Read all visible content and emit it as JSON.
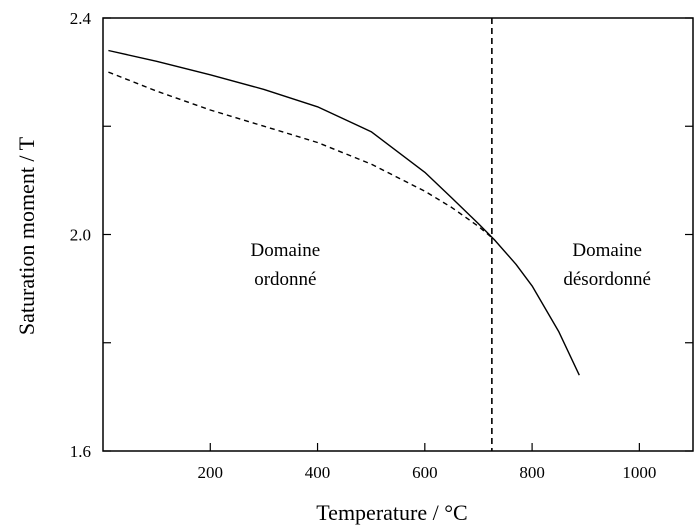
{
  "chart_data": {
    "type": "line",
    "title": "",
    "xlabel": "Temperature / °C",
    "ylabel": "Saturation moment / T",
    "xlim": [
      0,
      1100
    ],
    "ylim": [
      1.6,
      2.4
    ],
    "x_ticks": [
      200,
      400,
      600,
      800,
      1000
    ],
    "x_tick_labels": [
      "200",
      "400",
      "600",
      "800",
      "1000"
    ],
    "y_ticks": [
      1.6,
      2.0,
      2.4
    ],
    "y_tick_labels": [
      "1.6",
      "2.0",
      "2.4"
    ],
    "y_minor_ticks": [
      1.8,
      2.2
    ],
    "grid": false,
    "series": [
      {
        "style": "solid",
        "color": "#000000",
        "points": [
          [
            10,
            2.34
          ],
          [
            100,
            2.32
          ],
          [
            200,
            2.295
          ],
          [
            300,
            2.268
          ],
          [
            400,
            2.236
          ],
          [
            500,
            2.19
          ],
          [
            600,
            2.115
          ],
          [
            650,
            2.068
          ],
          [
            700,
            2.02
          ],
          [
            730,
            1.99
          ],
          [
            770,
            1.945
          ],
          [
            800,
            1.905
          ],
          [
            850,
            1.82
          ],
          [
            888,
            1.74
          ]
        ]
      },
      {
        "style": "dashed",
        "color": "#000000",
        "points": [
          [
            10,
            2.3
          ],
          [
            100,
            2.265
          ],
          [
            200,
            2.23
          ],
          [
            300,
            2.2
          ],
          [
            400,
            2.17
          ],
          [
            500,
            2.13
          ],
          [
            600,
            2.08
          ],
          [
            650,
            2.05
          ],
          [
            700,
            2.015
          ],
          [
            730,
            1.99
          ]
        ]
      }
    ],
    "vertical_line": {
      "x": 725,
      "style": "dashed",
      "color": "#000000"
    },
    "annotations": [
      {
        "lines": [
          "Domaine",
          "ordonné"
        ],
        "x": 340,
        "y": 1.96
      },
      {
        "lines": [
          "Domaine",
          "désordonné"
        ],
        "x": 940,
        "y": 1.96
      }
    ]
  }
}
